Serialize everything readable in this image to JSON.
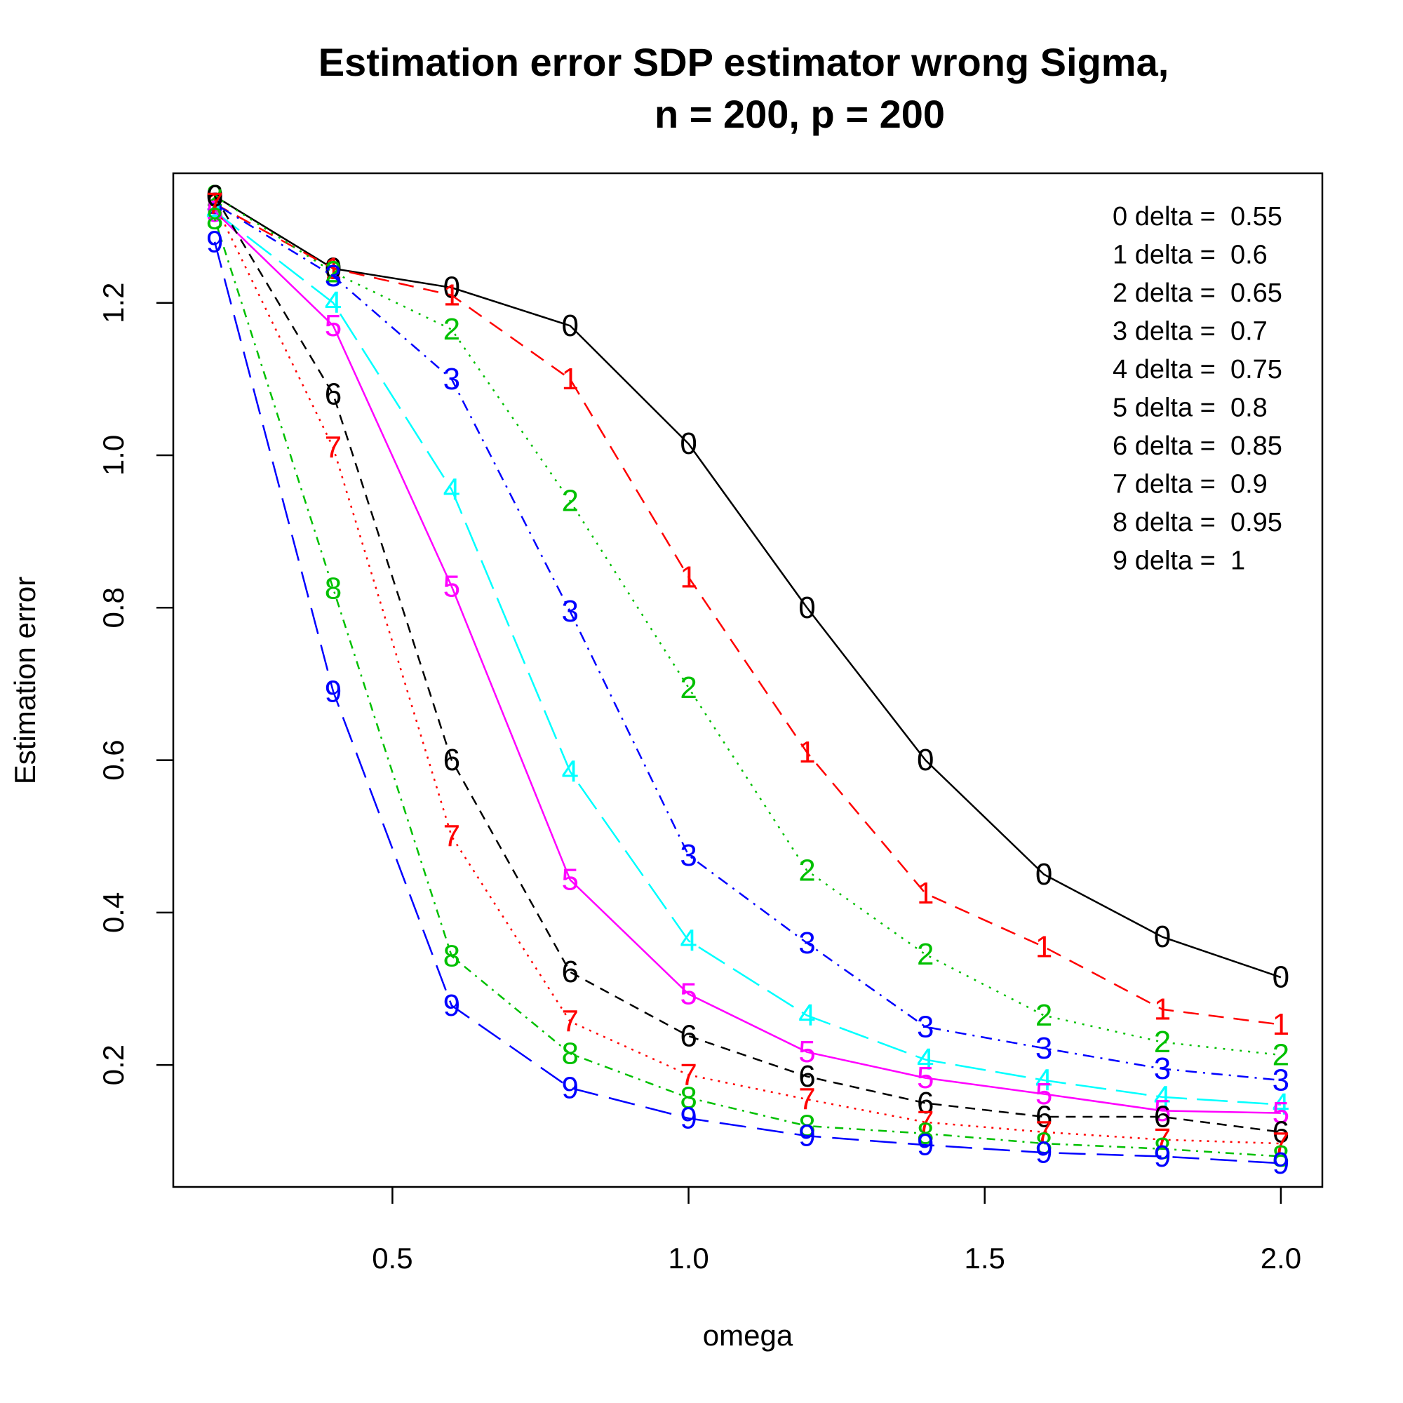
{
  "chart_data": {
    "type": "line",
    "title_line1": "Estimation error SDP estimator wrong Sigma,",
    "title_line2": "n = 200, p = 200",
    "xlabel": "omega",
    "ylabel": "Estimation error",
    "xlim": [
      0.13,
      2.07
    ],
    "ylim": [
      0.04,
      1.37
    ],
    "xticks": [
      0.5,
      1.0,
      1.5,
      2.0
    ],
    "xtick_labels": [
      "0.5",
      "1.0",
      "1.5",
      "2.0"
    ],
    "yticks": [
      0.2,
      0.4,
      0.6,
      0.8,
      1.0,
      1.2
    ],
    "ytick_labels": [
      "0.2",
      "0.4",
      "0.6",
      "0.8",
      "1.0",
      "1.2"
    ],
    "grid": false,
    "legend_position": "top-right",
    "x": [
      0.2,
      0.4,
      0.6,
      0.8,
      1.0,
      1.2,
      1.4,
      1.6,
      1.8,
      2.0
    ],
    "series": [
      {
        "name": "0",
        "legend": "0 delta =  0.55",
        "color": "#000000",
        "dash": "",
        "values": [
          1.34,
          1.245,
          1.22,
          1.17,
          1.015,
          0.8,
          0.6,
          0.45,
          0.368,
          0.315
        ]
      },
      {
        "name": "1",
        "legend": "1 delta =  0.6",
        "color": "#ff0000",
        "dash": "22,14",
        "values": [
          1.33,
          1.245,
          1.21,
          1.1,
          0.84,
          0.61,
          0.425,
          0.355,
          0.273,
          0.253
        ]
      },
      {
        "name": "2",
        "legend": "2 delta =  0.65",
        "color": "#00c000",
        "dash": "3,9",
        "values": [
          1.34,
          1.24,
          1.165,
          0.94,
          0.695,
          0.455,
          0.345,
          0.265,
          0.23,
          0.213
        ]
      },
      {
        "name": "3",
        "legend": "3 delta =  0.7",
        "color": "#0000ff",
        "dash": "3,9,16,9",
        "values": [
          1.33,
          1.235,
          1.1,
          0.795,
          0.475,
          0.36,
          0.25,
          0.222,
          0.195,
          0.18
        ]
      },
      {
        "name": "4",
        "legend": "4 delta =  0.75",
        "color": "#00ffff",
        "dash": "44,14",
        "values": [
          1.32,
          1.2,
          0.955,
          0.585,
          0.363,
          0.265,
          0.207,
          0.18,
          0.158,
          0.148
        ]
      },
      {
        "name": "5",
        "legend": "5 delta =  0.8",
        "color": "#ff00ff",
        "dash": "",
        "values": [
          1.32,
          1.17,
          0.828,
          0.443,
          0.293,
          0.217,
          0.183,
          0.162,
          0.14,
          0.137
        ]
      },
      {
        "name": "6",
        "legend": "6 delta =  0.85",
        "color": "#000000",
        "dash": "14,10",
        "values": [
          1.34,
          1.08,
          0.6,
          0.322,
          0.238,
          0.185,
          0.15,
          0.132,
          0.132,
          0.112
        ]
      },
      {
        "name": "7",
        "legend": "7 delta =  0.9",
        "color": "#ff0000",
        "dash": "3,8",
        "values": [
          1.33,
          1.01,
          0.5,
          0.257,
          0.187,
          0.155,
          0.125,
          0.112,
          0.102,
          0.097
        ]
      },
      {
        "name": "8",
        "legend": "8 delta =  0.95",
        "color": "#00c000",
        "dash": "3,8,12,8",
        "values": [
          1.31,
          0.825,
          0.343,
          0.215,
          0.157,
          0.12,
          0.11,
          0.097,
          0.09,
          0.08
        ]
      },
      {
        "name": "9",
        "legend": "9 delta =  1",
        "color": "#0000ff",
        "dash": "38,16",
        "values": [
          1.28,
          0.69,
          0.278,
          0.17,
          0.13,
          0.107,
          0.095,
          0.085,
          0.08,
          0.071
        ]
      }
    ]
  }
}
